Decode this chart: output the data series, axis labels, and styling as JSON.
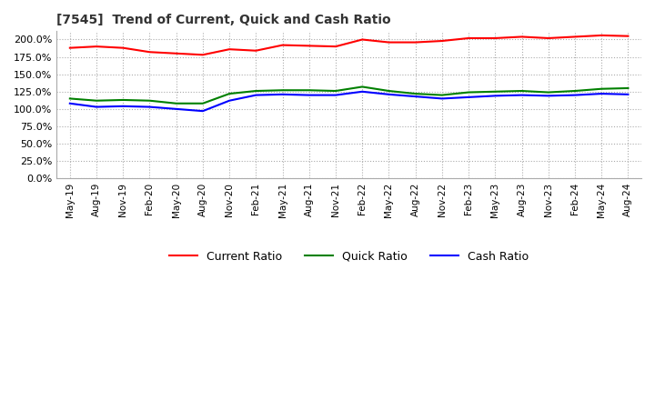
{
  "title": "[7545]  Trend of Current, Quick and Cash Ratio",
  "background_color": "#ffffff",
  "grid_color": "#aaaaaa",
  "ylim": [
    0.0,
    212.0
  ],
  "yticks": [
    0.0,
    25.0,
    50.0,
    75.0,
    100.0,
    125.0,
    150.0,
    175.0,
    200.0
  ],
  "x_labels": [
    "May-19",
    "Aug-19",
    "Nov-19",
    "Feb-20",
    "May-20",
    "Aug-20",
    "Nov-20",
    "Feb-21",
    "May-21",
    "Aug-21",
    "Nov-21",
    "Feb-22",
    "May-22",
    "Aug-22",
    "Nov-22",
    "Feb-23",
    "May-23",
    "Aug-23",
    "Nov-23",
    "Feb-24",
    "May-24",
    "Aug-24"
  ],
  "current_ratio": [
    188,
    190,
    188,
    182,
    180,
    178,
    186,
    184,
    192,
    191,
    190,
    200,
    196,
    196,
    198,
    202,
    202,
    204,
    202,
    204,
    206,
    205
  ],
  "quick_ratio": [
    115,
    112,
    113,
    112,
    108,
    108,
    122,
    126,
    127,
    127,
    126,
    132,
    126,
    122,
    120,
    124,
    125,
    126,
    124,
    126,
    129,
    130
  ],
  "cash_ratio": [
    108,
    103,
    104,
    103,
    100,
    97,
    112,
    120,
    121,
    120,
    120,
    125,
    121,
    118,
    115,
    117,
    119,
    120,
    119,
    120,
    122,
    121
  ],
  "current_color": "#ff0000",
  "quick_color": "#008000",
  "cash_color": "#0000ff",
  "legend_labels": [
    "Current Ratio",
    "Quick Ratio",
    "Cash Ratio"
  ],
  "line_width": 1.5
}
